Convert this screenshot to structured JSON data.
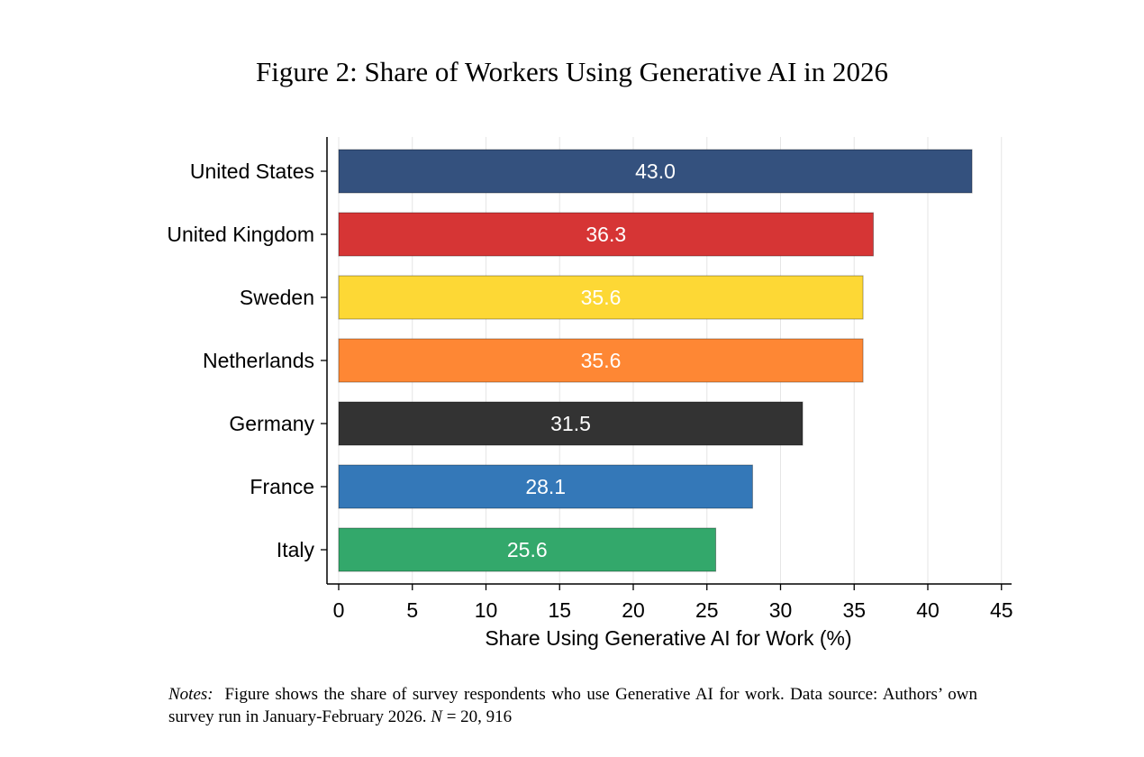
{
  "figure_title": "Figure 2: Share of Workers Using Generative AI in 2026",
  "chart_data": {
    "type": "bar",
    "orientation": "horizontal",
    "categories": [
      "United States",
      "United Kingdom",
      "Sweden",
      "Netherlands",
      "Germany",
      "France",
      "Italy"
    ],
    "values": [
      43.0,
      36.3,
      35.6,
      35.6,
      31.5,
      28.1,
      25.6
    ],
    "value_labels": [
      "43.0",
      "36.3",
      "35.6",
      "35.6",
      "31.5",
      "28.1",
      "25.6"
    ],
    "colors": [
      "#34517e",
      "#d63535",
      "#fdd835",
      "#fe8734",
      "#333333",
      "#3478b8",
      "#33a86b"
    ],
    "xlabel": "Share Using Generative AI for Work (%)",
    "ylabel": "",
    "xlim": [
      0,
      45
    ],
    "xticks": [
      0,
      5,
      10,
      15,
      20,
      25,
      30,
      35,
      40,
      45
    ],
    "xtick_labels": [
      "0",
      "5",
      "10",
      "15",
      "20",
      "25",
      "30",
      "35",
      "40",
      "45"
    ],
    "grid": true,
    "legend": "none"
  },
  "notes": {
    "label": "Notes:",
    "text": "Figure shows the share of survey respondents who use Generative AI for work.  Data source: Authors’ own survey run in January-February 2026.",
    "n_var": "N",
    "n_value": " = 20, 916"
  }
}
